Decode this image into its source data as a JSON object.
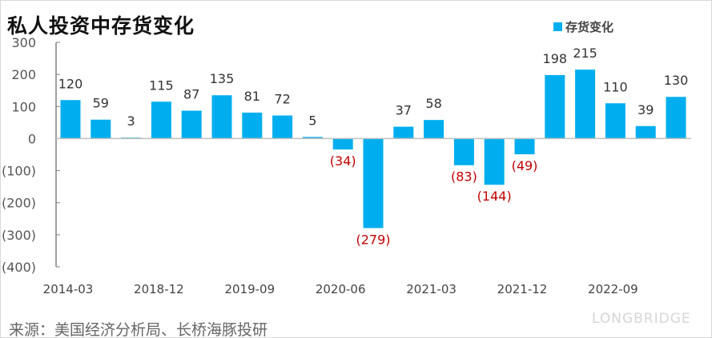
{
  "title": "私人投资中存货变化",
  "source": "来源：美国经济分析局、长桥海豚投研",
  "watermark": "LONGBRIDGE",
  "colors": {
    "bar": "#00AEEF",
    "negative_label": "#C00000",
    "label": "#333333"
  },
  "chart_data": {
    "type": "bar",
    "title": "私人投资中存货变化",
    "legend": {
      "entries": [
        "存货变化"
      ],
      "placement": "top-right"
    },
    "series": [
      {
        "name": "存货变化",
        "values": [
          120,
          59,
          3,
          115,
          87,
          135,
          81,
          72,
          5,
          -34,
          -279,
          37,
          58,
          -83,
          -144,
          -49,
          198,
          215,
          110,
          39,
          130
        ]
      }
    ],
    "x_tick_labels": [
      "2014-03",
      "2018-12",
      "2019-09",
      "2020-06",
      "2021-03",
      "2021-12",
      "2022-09"
    ],
    "x_tick_every": 3,
    "y_ticks": [
      300,
      200,
      100,
      0,
      -100,
      -200,
      -300,
      -400
    ],
    "y_tick_labels": [
      "300",
      "200",
      "100",
      "0",
      "(100)",
      "(200)",
      "(300)",
      "(400)"
    ],
    "data_labels": [
      "120",
      "59",
      "3",
      "115",
      "87",
      "135",
      "81",
      "72",
      "5",
      "(34)",
      "(279)",
      "37",
      "58",
      "(83)",
      "(144)",
      "(49)",
      "198",
      "215",
      "110",
      "39",
      "130"
    ],
    "ylim": [
      -400,
      300
    ],
    "grid": false,
    "xlabel": "",
    "ylabel": ""
  }
}
